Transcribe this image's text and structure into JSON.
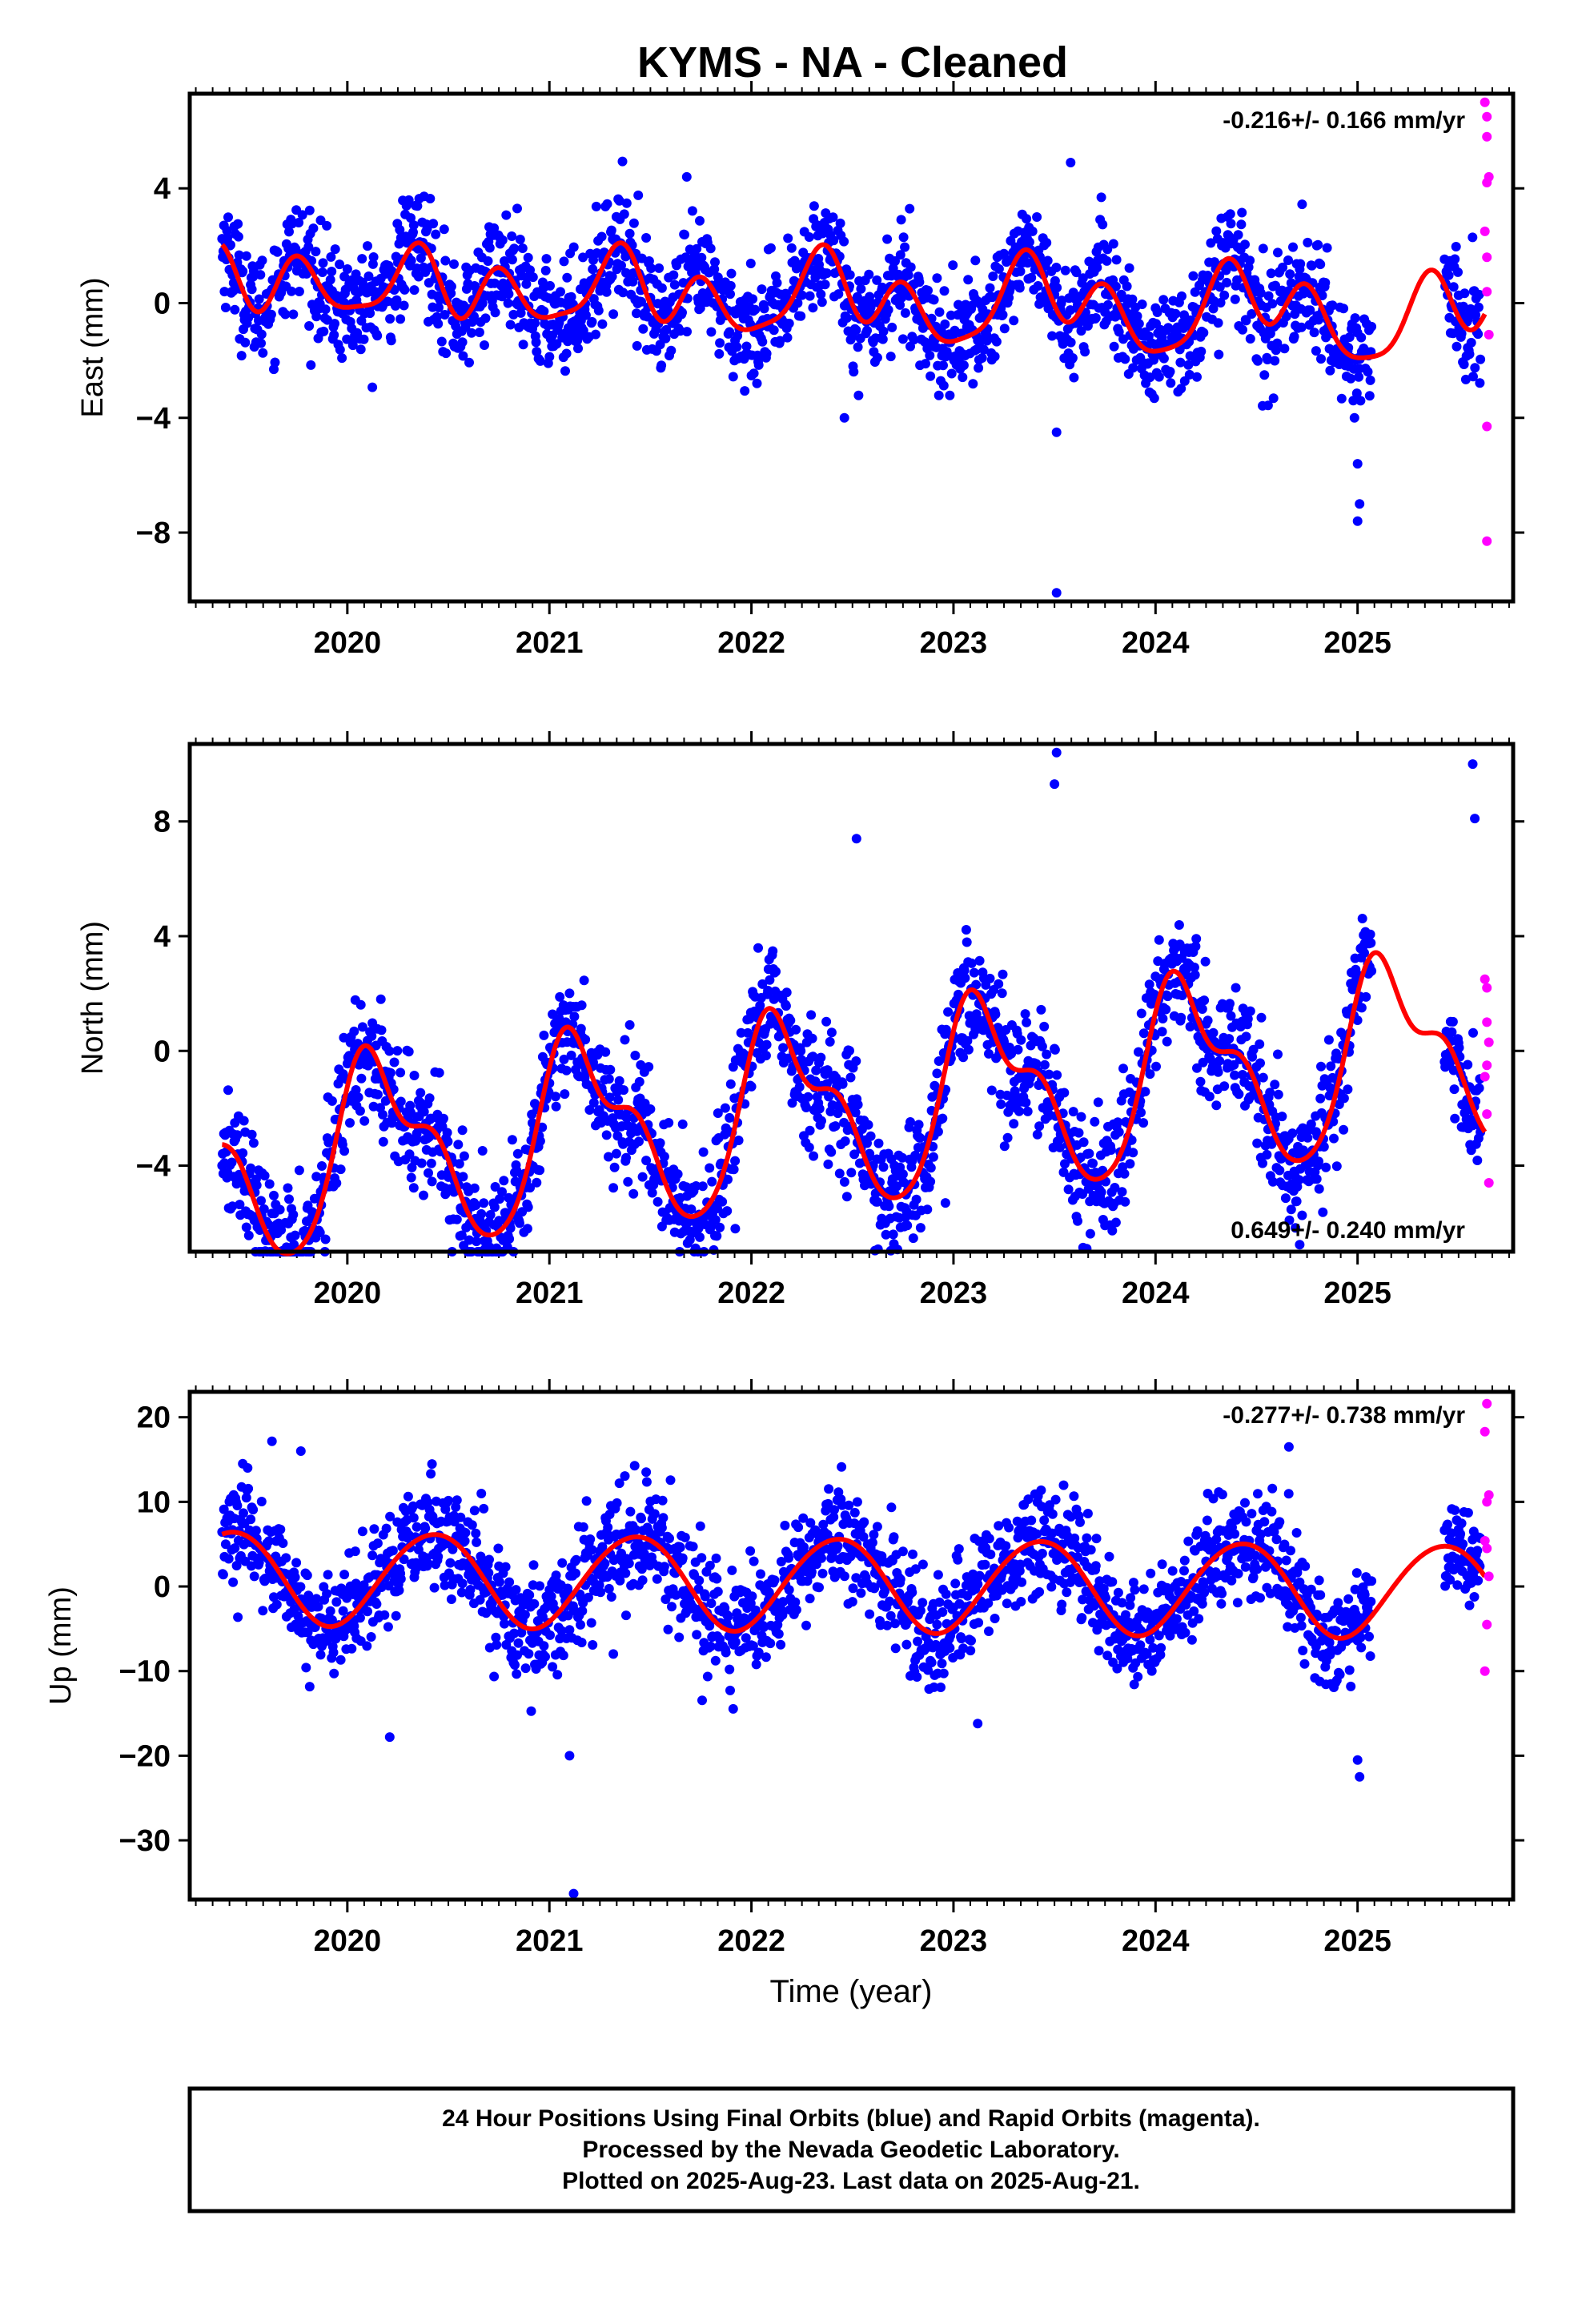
{
  "title": "KYMS  - NA - Cleaned",
  "xlabel": "Time (year)",
  "footer": [
    "24 Hour Positions Using Final Orbits (blue) and Rapid Orbits (magenta).",
    "Processed by the Nevada Geodetic Laboratory.",
    "Plotted on 2025-Aug-23. Last data on 2025-Aug-21."
  ],
  "colors": {
    "final": "#0000ff",
    "rapid": "#ff00ff",
    "model": "#ff0000"
  },
  "chart_data": [
    {
      "type": "scatter",
      "title": "",
      "ylabel": "East (mm)",
      "rate_label": "-0.216+/- 0.166 mm/yr",
      "rate_position": "top-right",
      "xlim": [
        2019.22,
        2025.77
      ],
      "ylim": [
        -10.4,
        7.3
      ],
      "xticks": [
        2020,
        2021,
        2022,
        2023,
        2024,
        2025
      ],
      "yticks": [
        {
          "v": 4,
          "t": "4"
        },
        {
          "v": 0,
          "t": "0"
        },
        {
          "v": -4,
          "t": "−4"
        },
        {
          "v": -8,
          "t": "−8"
        }
      ],
      "model": {
        "offset": 0.1,
        "rate": -0.216,
        "amps": [
          0.7,
          0.9,
          0.45
        ],
        "phases": [
          4.8,
          4.0,
          0.6
        ],
        "wobble": [
          0.35,
          1.3
        ]
      },
      "scatter_std": 0.95,
      "outliers": [
        [
          2023.51,
          -10.1
        ],
        [
          2023.51,
          -4.5
        ],
        [
          2025.0,
          -7.6
        ],
        [
          2025.01,
          -7.0
        ],
        [
          2025.0,
          -5.6
        ],
        [
          2023.58,
          4.9
        ],
        [
          2022.46,
          -4.0
        ],
        [
          2021.68,
          4.4
        ]
      ],
      "rapid_points": [
        [
          2025.63,
          7.0
        ],
        [
          2025.64,
          6.5
        ],
        [
          2025.64,
          5.8
        ],
        [
          2025.65,
          4.4
        ],
        [
          2025.64,
          4.2
        ],
        [
          2025.63,
          2.5
        ],
        [
          2025.64,
          1.6
        ],
        [
          2025.64,
          0.4
        ],
        [
          2025.65,
          -1.1
        ],
        [
          2025.64,
          -4.3
        ],
        [
          2025.64,
          -8.3
        ]
      ]
    },
    {
      "type": "scatter",
      "title": "",
      "ylabel": "North (mm)",
      "rate_label": "0.649+/- 0.240 mm/yr",
      "rate_position": "bottom-right",
      "xlim": [
        2019.22,
        2025.77
      ],
      "ylim": [
        -7.0,
        10.7
      ],
      "xticks": [
        2020,
        2021,
        2022,
        2023,
        2024,
        2025
      ],
      "yticks": [
        {
          "v": 8,
          "t": "8"
        },
        {
          "v": 4,
          "t": "4"
        },
        {
          "v": 0,
          "t": "0"
        },
        {
          "v": -4,
          "t": "−4"
        }
      ],
      "model": {
        "offset": -2.0,
        "rate": 0.649,
        "amps": [
          3.0,
          1.0,
          0.4
        ],
        "phases": [
          0.5,
          1.2,
          0.0
        ],
        "wobble": [
          0.0,
          0.0
        ]
      },
      "scatter_std": 1.05,
      "outliers": [
        [
          2023.51,
          10.4
        ],
        [
          2023.5,
          9.3
        ],
        [
          2025.57,
          10.0
        ],
        [
          2025.58,
          8.1
        ],
        [
          2019.81,
          -6.6
        ],
        [
          2022.52,
          7.4
        ],
        [
          2022.96,
          -5.3
        ],
        [
          2021.92,
          -6.2
        ]
      ],
      "rapid_points": [
        [
          2025.63,
          2.5
        ],
        [
          2025.64,
          2.2
        ],
        [
          2025.64,
          1.0
        ],
        [
          2025.65,
          0.3
        ],
        [
          2025.64,
          -0.5
        ],
        [
          2025.63,
          -0.9
        ],
        [
          2025.64,
          -2.2
        ],
        [
          2025.65,
          -4.6
        ]
      ]
    },
    {
      "type": "scatter",
      "title": "",
      "ylabel": "Up (mm)",
      "rate_label": "-0.277+/- 0.738 mm/yr",
      "rate_position": "top-right",
      "xlim": [
        2019.22,
        2025.77
      ],
      "ylim": [
        -37,
        23
      ],
      "xticks": [
        2020,
        2021,
        2022,
        2023,
        2024,
        2025
      ],
      "yticks": [
        {
          "v": 20,
          "t": "20"
        },
        {
          "v": 10,
          "t": "10"
        },
        {
          "v": 0,
          "t": "0"
        },
        {
          "v": -10,
          "t": "−10"
        },
        {
          "v": -20,
          "t": "−20"
        },
        {
          "v": -30,
          "t": "−30"
        }
      ],
      "model": {
        "offset": 0.3,
        "rate": -0.277,
        "amps": [
          5.5,
          0.3,
          0.0
        ],
        "phases": [
          5.2,
          0.0,
          0.0
        ],
        "wobble": [
          0.0,
          0.0
        ]
      },
      "scatter_std": 3.2,
      "outliers": [
        [
          2021.12,
          -36.3
        ],
        [
          2021.1,
          -20.0
        ],
        [
          2025.01,
          -22.5
        ],
        [
          2025.0,
          -20.5
        ],
        [
          2024.66,
          16.5
        ],
        [
          2019.77,
          16.0
        ],
        [
          2023.12,
          -16.2
        ],
        [
          2020.21,
          -17.8
        ]
      ],
      "rapid_points": [
        [
          2025.64,
          21.6
        ],
        [
          2025.63,
          18.3
        ],
        [
          2025.65,
          10.8
        ],
        [
          2025.64,
          10.0
        ],
        [
          2025.63,
          5.4
        ],
        [
          2025.64,
          4.5
        ],
        [
          2025.65,
          1.2
        ],
        [
          2025.64,
          -4.5
        ],
        [
          2025.63,
          -10.0
        ]
      ]
    }
  ]
}
